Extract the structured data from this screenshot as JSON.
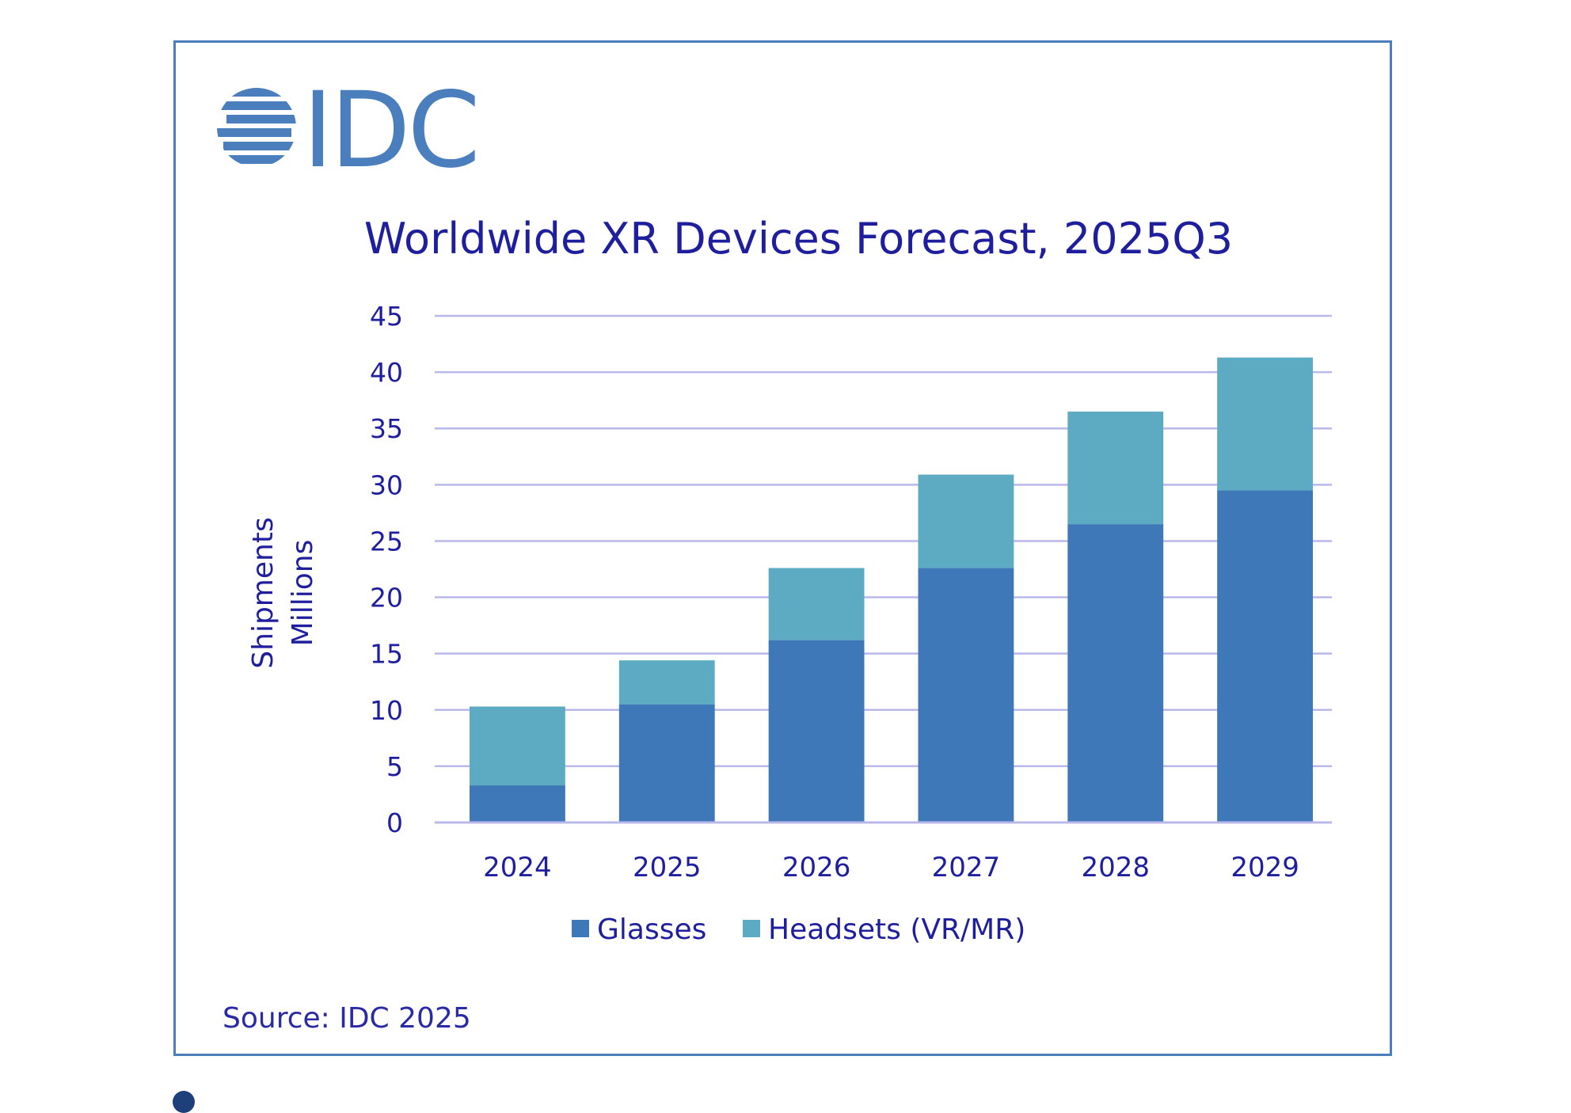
{
  "logo": {
    "text": "IDC"
  },
  "source_text": "Source: IDC 2025",
  "colors": {
    "glasses": "#3e78b8",
    "headsets": "#5dabc3",
    "grid": "#b8b8ea",
    "text": "#1f1f9e",
    "frame": "#4a7ebd"
  },
  "chart_data": {
    "type": "bar",
    "stacked": true,
    "title": "Worldwide XR Devices Forecast, 2025Q3",
    "ylabel_line1": "Shipments",
    "ylabel_line2": "Millions",
    "xlabel": "",
    "categories": [
      "2024",
      "2025",
      "2026",
      "2027",
      "2028",
      "2029"
    ],
    "series": [
      {
        "name": "Glasses",
        "values": [
          3.3,
          10.5,
          16.2,
          22.6,
          26.5,
          29.5
        ]
      },
      {
        "name": "Headsets (VR/MR)",
        "values": [
          7.0,
          3.9,
          6.4,
          8.3,
          10.0,
          11.8
        ]
      }
    ],
    "ylim": [
      0,
      45
    ],
    "yticks": [
      "0",
      "5",
      "10",
      "15",
      "20",
      "25",
      "30",
      "35",
      "40",
      "45"
    ],
    "grid": true,
    "legend_position": "bottom"
  }
}
